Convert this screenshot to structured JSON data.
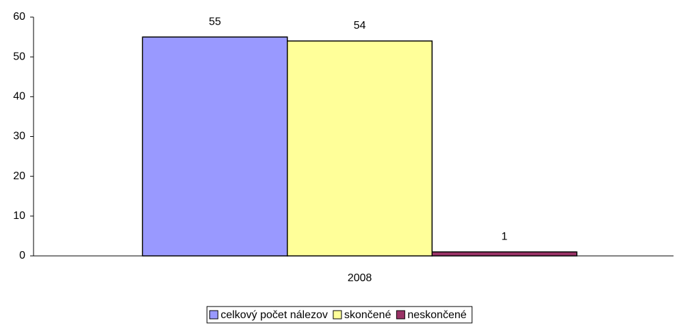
{
  "chart_data": {
    "type": "bar",
    "categories": [
      "2008"
    ],
    "series": [
      {
        "name": "celkový počet nálezov",
        "color": "#9999ff",
        "values": [
          55
        ]
      },
      {
        "name": "skončené",
        "color": "#ffff99",
        "values": [
          54
        ]
      },
      {
        "name": "neskončené",
        "color": "#993366",
        "values": [
          1
        ]
      }
    ],
    "ylim": [
      0,
      60
    ],
    "yticks": [
      0,
      10,
      20,
      30,
      40,
      50,
      60
    ],
    "legend": "bottom"
  }
}
